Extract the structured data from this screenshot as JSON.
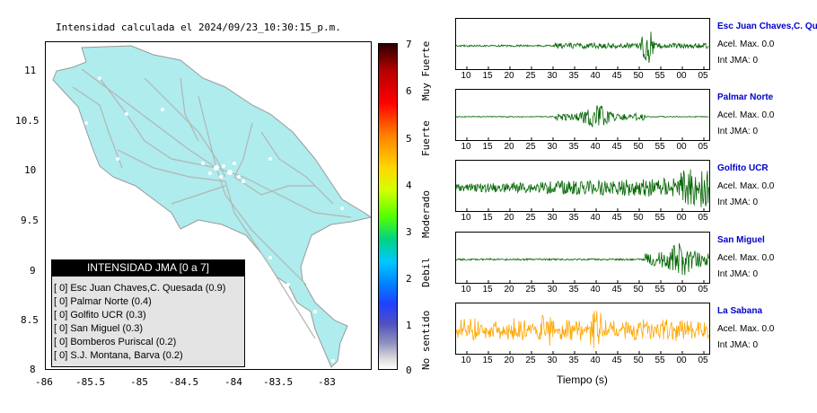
{
  "map": {
    "title": "Intensidad calculada el 2024/09/23_10:30:15_p.m.",
    "x_ticks": [
      "-86",
      "-85.5",
      "-85",
      "-84.5",
      "-84",
      "-83.5",
      "-83"
    ],
    "y_ticks": [
      "11",
      "10.5",
      "10",
      "9.5",
      "9",
      "8.5",
      "8"
    ],
    "land_color": "#aeeced",
    "road_color": "#b4b4b4"
  },
  "legend": {
    "title": "INTENSIDAD JMA [0 a 7]",
    "items": [
      "[ 0]  Esc Juan Chaves,C. Quesada (0.9)",
      "[ 0]  Palmar Norte (0.4)",
      "[ 0]  Golfito UCR (0.3)",
      "[ 0]  San Miguel (0.3)",
      "[ 0]  Bomberos Puriscal (0.2)",
      "[ 0]  S.J. Montana, Barva (0.2)"
    ]
  },
  "colorbar": {
    "ticks": [
      "7",
      "6",
      "5",
      "4",
      "3",
      "2",
      "1",
      "0"
    ],
    "labels": [
      "Muy Fuerte",
      "Fuerte",
      "Moderado",
      "Debil",
      "No sentido"
    ]
  },
  "stations": [
    {
      "name": "Esc Juan Chaves,C. Quesada",
      "acel": "Acel. Max. 0.0",
      "jma": "Int JMA: 0",
      "color": "#006400"
    },
    {
      "name": "Palmar Norte",
      "acel": "Acel. Max. 0.0",
      "jma": "Int JMA: 0",
      "color": "#006400"
    },
    {
      "name": "Golfito UCR",
      "acel": "Acel. Max. 0.0",
      "jma": "Int JMA: 0",
      "color": "#006400"
    },
    {
      "name": "San Miguel",
      "acel": "Acel. Max. 0.0",
      "jma": "Int JMA: 0",
      "color": "#006400"
    },
    {
      "name": "La Sabana",
      "acel": "Acel. Max. 0.0",
      "jma": "Int JMA: 0",
      "color": "#ffa500"
    }
  ],
  "time_ticks": [
    "10",
    "15",
    "20",
    "25",
    "30",
    "35",
    "40",
    "45",
    "50",
    "55",
    "00",
    "05"
  ],
  "time_label": "Tiempo (s)"
}
